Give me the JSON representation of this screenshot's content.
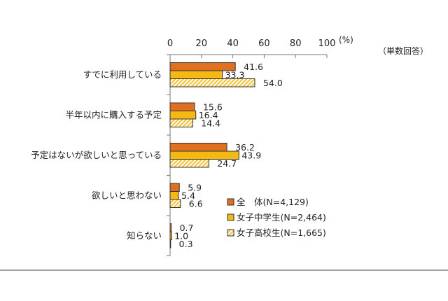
{
  "chart_data": {
    "type": "bar",
    "orientation": "horizontal",
    "unit_label": "(%)",
    "note": "（単数回答）",
    "xlim": [
      0,
      100
    ],
    "x_ticks": [
      0,
      20,
      40,
      60,
      80,
      100
    ],
    "grid": false,
    "legend_position": "bottom-right",
    "categories": [
      "すでに利用している",
      "半年以内に購入する予定",
      "予定はないが欲しいと思っている",
      "欲しいと思わない",
      "知らない"
    ],
    "series": [
      {
        "name": "全　体(N=4,129)",
        "color": "#e07020",
        "pattern": "solid",
        "values": [
          41.6,
          15.6,
          36.2,
          5.9,
          0.7
        ]
      },
      {
        "name": "女子中学生(N=2,464)",
        "color": "#f5b914",
        "pattern": "solid",
        "values": [
          33.3,
          16.4,
          43.9,
          5.4,
          1.0
        ]
      },
      {
        "name": "女子高校生(N=1,665)",
        "color": "#f5c030",
        "pattern": "hatch",
        "values": [
          54.0,
          14.4,
          24.7,
          6.6,
          0.3
        ]
      }
    ]
  }
}
